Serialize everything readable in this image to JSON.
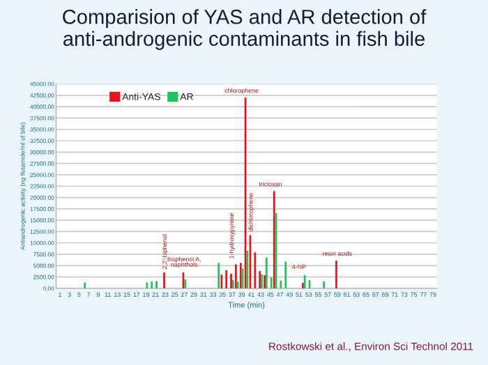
{
  "chart_data": {
    "type": "bar",
    "title": "Comparision of YAS and AR detection of\nanti-androgenic contaminants in fish bile",
    "xlabel": "Time (min)",
    "ylabel": "Antiandrogenic activity (ng flutamide/ml of bile)",
    "categories": [
      "1",
      null,
      "3",
      null,
      "5",
      null,
      "7",
      null,
      "9",
      null,
      "11",
      null,
      "13",
      null,
      "15",
      null,
      "17",
      null,
      "19",
      null,
      "21",
      null,
      "23",
      null,
      "25",
      null,
      "27",
      null,
      "29",
      null,
      "31",
      null,
      "33",
      null,
      "35",
      null,
      "37",
      null,
      "39",
      null,
      "41",
      null,
      "43",
      null,
      "45",
      null,
      "47",
      null,
      "49",
      null,
      "51",
      null,
      "53",
      null,
      "55",
      null,
      "57",
      null,
      "59",
      null,
      "61",
      null,
      "63",
      null,
      "65",
      null,
      "67",
      null,
      "69",
      null,
      "71",
      null,
      "73",
      null,
      "75",
      null,
      "77",
      null,
      "79"
    ],
    "series": [
      {
        "name": "Anti-YAS",
        "color": "#e8141c",
        "values": [
          null,
          null,
          null,
          null,
          null,
          null,
          null,
          null,
          null,
          null,
          null,
          null,
          null,
          null,
          null,
          null,
          null,
          null,
          null,
          null,
          null,
          null,
          3500,
          null,
          null,
          null,
          3500,
          null,
          null,
          null,
          null,
          null,
          null,
          null,
          3000,
          4000,
          3200,
          5300,
          5600,
          42000,
          11700,
          7900,
          3800,
          2900,
          null,
          21400,
          null,
          null,
          null,
          null,
          null,
          1200,
          null,
          null,
          null,
          null,
          null,
          null,
          6100,
          null,
          null,
          null,
          null,
          null,
          null,
          null,
          null,
          null,
          null,
          null,
          null,
          null,
          null,
          null,
          null,
          null,
          null,
          null,
          null
        ]
      },
      {
        "name": "AR",
        "color": "#1ec45a",
        "values": [
          null,
          null,
          null,
          null,
          null,
          1300,
          null,
          null,
          null,
          null,
          null,
          null,
          null,
          null,
          null,
          null,
          null,
          null,
          1300,
          1500,
          1600,
          null,
          null,
          null,
          null,
          null,
          2000,
          null,
          null,
          null,
          null,
          null,
          null,
          5600,
          null,
          null,
          1900,
          1500,
          4400,
          8300,
          null,
          null,
          3100,
          6800,
          2400,
          16600,
          1700,
          5900,
          null,
          null,
          null,
          2900,
          1800,
          null,
          null,
          1500,
          null,
          null,
          null,
          null,
          null,
          null,
          null,
          null,
          null,
          null,
          null,
          null,
          null,
          null,
          null,
          null,
          null,
          null,
          null,
          null,
          null,
          null,
          null
        ]
      }
    ],
    "ylim": [
      0,
      45000
    ],
    "yticks": [
      {
        "value": 0,
        "label": "0.00"
      },
      {
        "value": 2500,
        "label": "2500.00"
      },
      {
        "value": 5000,
        "label": "5000.00"
      },
      {
        "value": 7500,
        "label": "7500.00"
      },
      {
        "value": 10000,
        "label": "10000.00"
      },
      {
        "value": 12500,
        "label": "12500.00"
      },
      {
        "value": 15000,
        "label": "15000.00"
      },
      {
        "value": 17500,
        "label": "17500.00"
      },
      {
        "value": 20000,
        "label": "20000.00"
      },
      {
        "value": 22500,
        "label": "22500.00"
      },
      {
        "value": 25000,
        "label": "25000.00"
      },
      {
        "value": 27500,
        "label": "27500.00"
      },
      {
        "value": 30000,
        "label": "30000.00"
      },
      {
        "value": 32500,
        "label": "32500.00"
      },
      {
        "value": 35000,
        "label": "35000.00"
      },
      {
        "value": 37500,
        "label": "37500.00"
      },
      {
        "value": 40000,
        "label": "40000.00"
      },
      {
        "value": 42500,
        "label": "42500.00"
      },
      {
        "value": 45000,
        "label": "45000.00"
      }
    ],
    "grid": "y",
    "legend": "top left",
    "annotations": [
      "2,2'-biphenol",
      {
        "text": "bisphenol A,\nnaphthols",
        "x": "27",
        "y": 4500
      },
      {
        "text": "1-hydroxypyrene",
        "x": "37",
        "y": 6500
      },
      {
        "text": "chlorophene",
        "x": "39",
        "y": 42800
      },
      {
        "text": "dichlorophene",
        "x": "41",
        "y": 12500
      },
      {
        "text": "triclosan",
        "x": "45",
        "y": 22200
      },
      {
        "text": "4-NP",
        "x": "51",
        "y": 4000
      },
      {
        "text": "resin acids",
        "x": "59",
        "y": 6900
      },
      "Rostkowski et al., Environ Sci Technol 2011"
    ]
  }
}
